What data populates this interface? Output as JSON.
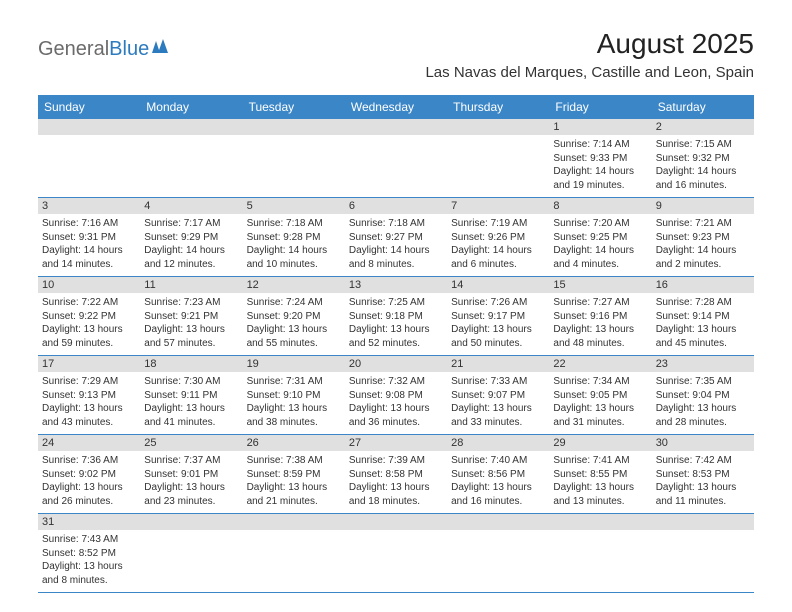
{
  "logo": {
    "general": "General",
    "blue": "Blue"
  },
  "title": "August 2025",
  "location": "Las Navas del Marques, Castille and Leon, Spain",
  "colors": {
    "header_bg": "#3b86c7",
    "daynum_bg": "#e0e0e0",
    "logo_gray": "#6b6b6b",
    "logo_blue": "#2d7bbf",
    "border": "#3b86c7"
  },
  "weekdays": [
    "Sunday",
    "Monday",
    "Tuesday",
    "Wednesday",
    "Thursday",
    "Friday",
    "Saturday"
  ],
  "weeks": [
    {
      "nums": [
        "",
        "",
        "",
        "",
        "",
        "1",
        "2"
      ],
      "days": [
        null,
        null,
        null,
        null,
        null,
        {
          "sunrise": "Sunrise: 7:14 AM",
          "sunset": "Sunset: 9:33 PM",
          "daylight": "Daylight: 14 hours and 19 minutes."
        },
        {
          "sunrise": "Sunrise: 7:15 AM",
          "sunset": "Sunset: 9:32 PM",
          "daylight": "Daylight: 14 hours and 16 minutes."
        }
      ]
    },
    {
      "nums": [
        "3",
        "4",
        "5",
        "6",
        "7",
        "8",
        "9"
      ],
      "days": [
        {
          "sunrise": "Sunrise: 7:16 AM",
          "sunset": "Sunset: 9:31 PM",
          "daylight": "Daylight: 14 hours and 14 minutes."
        },
        {
          "sunrise": "Sunrise: 7:17 AM",
          "sunset": "Sunset: 9:29 PM",
          "daylight": "Daylight: 14 hours and 12 minutes."
        },
        {
          "sunrise": "Sunrise: 7:18 AM",
          "sunset": "Sunset: 9:28 PM",
          "daylight": "Daylight: 14 hours and 10 minutes."
        },
        {
          "sunrise": "Sunrise: 7:18 AM",
          "sunset": "Sunset: 9:27 PM",
          "daylight": "Daylight: 14 hours and 8 minutes."
        },
        {
          "sunrise": "Sunrise: 7:19 AM",
          "sunset": "Sunset: 9:26 PM",
          "daylight": "Daylight: 14 hours and 6 minutes."
        },
        {
          "sunrise": "Sunrise: 7:20 AM",
          "sunset": "Sunset: 9:25 PM",
          "daylight": "Daylight: 14 hours and 4 minutes."
        },
        {
          "sunrise": "Sunrise: 7:21 AM",
          "sunset": "Sunset: 9:23 PM",
          "daylight": "Daylight: 14 hours and 2 minutes."
        }
      ]
    },
    {
      "nums": [
        "10",
        "11",
        "12",
        "13",
        "14",
        "15",
        "16"
      ],
      "days": [
        {
          "sunrise": "Sunrise: 7:22 AM",
          "sunset": "Sunset: 9:22 PM",
          "daylight": "Daylight: 13 hours and 59 minutes."
        },
        {
          "sunrise": "Sunrise: 7:23 AM",
          "sunset": "Sunset: 9:21 PM",
          "daylight": "Daylight: 13 hours and 57 minutes."
        },
        {
          "sunrise": "Sunrise: 7:24 AM",
          "sunset": "Sunset: 9:20 PM",
          "daylight": "Daylight: 13 hours and 55 minutes."
        },
        {
          "sunrise": "Sunrise: 7:25 AM",
          "sunset": "Sunset: 9:18 PM",
          "daylight": "Daylight: 13 hours and 52 minutes."
        },
        {
          "sunrise": "Sunrise: 7:26 AM",
          "sunset": "Sunset: 9:17 PM",
          "daylight": "Daylight: 13 hours and 50 minutes."
        },
        {
          "sunrise": "Sunrise: 7:27 AM",
          "sunset": "Sunset: 9:16 PM",
          "daylight": "Daylight: 13 hours and 48 minutes."
        },
        {
          "sunrise": "Sunrise: 7:28 AM",
          "sunset": "Sunset: 9:14 PM",
          "daylight": "Daylight: 13 hours and 45 minutes."
        }
      ]
    },
    {
      "nums": [
        "17",
        "18",
        "19",
        "20",
        "21",
        "22",
        "23"
      ],
      "days": [
        {
          "sunrise": "Sunrise: 7:29 AM",
          "sunset": "Sunset: 9:13 PM",
          "daylight": "Daylight: 13 hours and 43 minutes."
        },
        {
          "sunrise": "Sunrise: 7:30 AM",
          "sunset": "Sunset: 9:11 PM",
          "daylight": "Daylight: 13 hours and 41 minutes."
        },
        {
          "sunrise": "Sunrise: 7:31 AM",
          "sunset": "Sunset: 9:10 PM",
          "daylight": "Daylight: 13 hours and 38 minutes."
        },
        {
          "sunrise": "Sunrise: 7:32 AM",
          "sunset": "Sunset: 9:08 PM",
          "daylight": "Daylight: 13 hours and 36 minutes."
        },
        {
          "sunrise": "Sunrise: 7:33 AM",
          "sunset": "Sunset: 9:07 PM",
          "daylight": "Daylight: 13 hours and 33 minutes."
        },
        {
          "sunrise": "Sunrise: 7:34 AM",
          "sunset": "Sunset: 9:05 PM",
          "daylight": "Daylight: 13 hours and 31 minutes."
        },
        {
          "sunrise": "Sunrise: 7:35 AM",
          "sunset": "Sunset: 9:04 PM",
          "daylight": "Daylight: 13 hours and 28 minutes."
        }
      ]
    },
    {
      "nums": [
        "24",
        "25",
        "26",
        "27",
        "28",
        "29",
        "30"
      ],
      "days": [
        {
          "sunrise": "Sunrise: 7:36 AM",
          "sunset": "Sunset: 9:02 PM",
          "daylight": "Daylight: 13 hours and 26 minutes."
        },
        {
          "sunrise": "Sunrise: 7:37 AM",
          "sunset": "Sunset: 9:01 PM",
          "daylight": "Daylight: 13 hours and 23 minutes."
        },
        {
          "sunrise": "Sunrise: 7:38 AM",
          "sunset": "Sunset: 8:59 PM",
          "daylight": "Daylight: 13 hours and 21 minutes."
        },
        {
          "sunrise": "Sunrise: 7:39 AM",
          "sunset": "Sunset: 8:58 PM",
          "daylight": "Daylight: 13 hours and 18 minutes."
        },
        {
          "sunrise": "Sunrise: 7:40 AM",
          "sunset": "Sunset: 8:56 PM",
          "daylight": "Daylight: 13 hours and 16 minutes."
        },
        {
          "sunrise": "Sunrise: 7:41 AM",
          "sunset": "Sunset: 8:55 PM",
          "daylight": "Daylight: 13 hours and 13 minutes."
        },
        {
          "sunrise": "Sunrise: 7:42 AM",
          "sunset": "Sunset: 8:53 PM",
          "daylight": "Daylight: 13 hours and 11 minutes."
        }
      ]
    },
    {
      "nums": [
        "31",
        "",
        "",
        "",
        "",
        "",
        ""
      ],
      "days": [
        {
          "sunrise": "Sunrise: 7:43 AM",
          "sunset": "Sunset: 8:52 PM",
          "daylight": "Daylight: 13 hours and 8 minutes."
        },
        null,
        null,
        null,
        null,
        null,
        null
      ]
    }
  ]
}
